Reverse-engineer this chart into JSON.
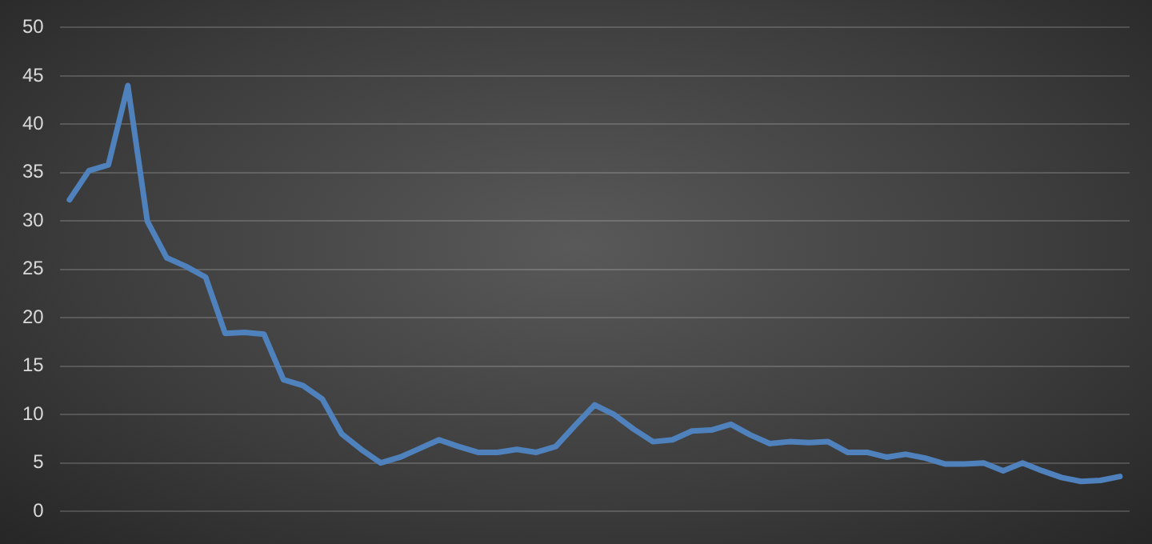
{
  "chart_data": {
    "type": "line",
    "categories": [
      null,
      null,
      null,
      null,
      null,
      null,
      null,
      null,
      null,
      null,
      null,
      null,
      null,
      null,
      null,
      null,
      null,
      null,
      null,
      null,
      null,
      null,
      null,
      null,
      null,
      null,
      null,
      null,
      null,
      null,
      null,
      null,
      null,
      null,
      null,
      null,
      null,
      null,
      null,
      null,
      null,
      null,
      null,
      null,
      null,
      null,
      null,
      null,
      null,
      null,
      null,
      null,
      null,
      null,
      null
    ],
    "series": [
      {
        "color": "#4f81bd",
        "values": [
          32.2,
          35.2,
          35.8,
          44,
          30,
          26.2,
          25.3,
          24.2,
          18.4,
          18.5,
          18.3,
          13.6,
          13,
          11.6,
          8,
          6.4,
          5,
          5.6,
          6.5,
          7.4,
          6.7,
          6.1,
          6.1,
          6.4,
          6.1,
          6.7,
          8.9,
          11,
          10,
          8.5,
          7.2,
          7.4,
          8.3,
          8.4,
          9,
          7.9,
          7,
          7.2,
          7.1,
          7.2,
          6.1,
          6.1,
          5.6,
          5.9,
          5.5,
          4.9,
          4.9,
          5,
          4.2,
          5,
          4.2,
          3.5,
          3.1,
          3.2,
          3.6
        ]
      }
    ],
    "ylim": [
      0,
      50
    ],
    "yticks": [
      0,
      5,
      10,
      15,
      20,
      25,
      30,
      35,
      40,
      45,
      50
    ],
    "grid": "y",
    "marker": "none",
    "line_style": "solid"
  }
}
